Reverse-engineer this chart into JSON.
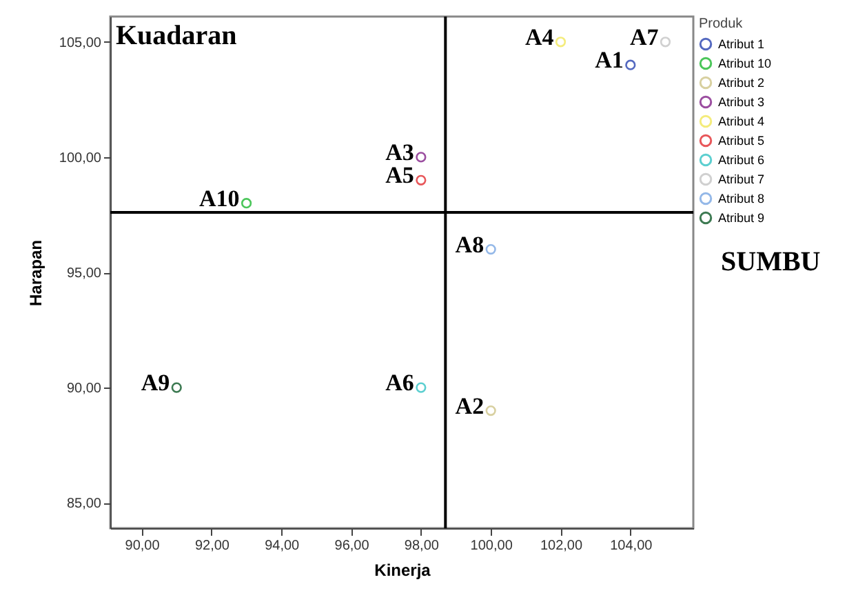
{
  "chart_data": {
    "type": "scatter",
    "xlabel": "Kinerja",
    "ylabel": "Harapan",
    "legend_title": "Produk",
    "legend": "top right",
    "marker": "circle",
    "grid": false,
    "xlim": [
      89.1,
      105.8
    ],
    "ylim": [
      83.9,
      106.1
    ],
    "xticks": [
      {
        "value": 90,
        "label": "90,00"
      },
      {
        "value": 92,
        "label": "92,00"
      },
      {
        "value": 94,
        "label": "94,00"
      },
      {
        "value": 96,
        "label": "96,00"
      },
      {
        "value": 98,
        "label": "98,00"
      },
      {
        "value": 100,
        "label": "100,00"
      },
      {
        "value": 102,
        "label": "102,00"
      },
      {
        "value": 104,
        "label": "104,00"
      }
    ],
    "yticks": [
      {
        "value": 85,
        "label": "85,00"
      },
      {
        "value": 90,
        "label": "90,00"
      },
      {
        "value": 95,
        "label": "95,00"
      },
      {
        "value": 100,
        "label": "100,00"
      },
      {
        "value": 105,
        "label": "105,00"
      }
    ],
    "series": [
      {
        "name": "Atribut 1",
        "color": "#5469c0",
        "x": [
          104
        ],
        "values": [
          104
        ]
      },
      {
        "name": "Atribut 10",
        "color": "#4bc65a",
        "x": [
          93
        ],
        "values": [
          98
        ]
      },
      {
        "name": "Atribut 2",
        "color": "#d8d0a0",
        "x": [
          100
        ],
        "values": [
          89
        ]
      },
      {
        "name": "Atribut 3",
        "color": "#9b4ea0",
        "x": [
          98
        ],
        "values": [
          100
        ]
      },
      {
        "name": "Atribut 4",
        "color": "#f4ec7c",
        "x": [
          102
        ],
        "values": [
          105
        ]
      },
      {
        "name": "Atribut 5",
        "color": "#e8575a",
        "x": [
          98
        ],
        "values": [
          99
        ]
      },
      {
        "name": "Atribut 6",
        "color": "#5ccfd0",
        "x": [
          98
        ],
        "values": [
          90
        ]
      },
      {
        "name": "Atribut 7",
        "color": "#d0d0d0",
        "x": [
          105
        ],
        "values": [
          105
        ]
      },
      {
        "name": "Atribut 8",
        "color": "#94b8e8",
        "x": [
          100
        ],
        "values": [
          96
        ]
      },
      {
        "name": "Atribut 9",
        "color": "#3d7a52",
        "x": [
          91
        ],
        "values": [
          90
        ]
      }
    ],
    "ref_lines": [
      {
        "axis": "x",
        "value": 98.7,
        "color": "#000000"
      },
      {
        "axis": "y",
        "value": 97.6,
        "color": "#000000"
      }
    ],
    "annotations": [
      "Kuadaran",
      "SUMBU",
      {
        "text": "A1",
        "x": 104,
        "y": 104
      },
      {
        "text": "A10",
        "x": 93,
        "y": 98
      },
      {
        "text": "A2",
        "x": 100,
        "y": 89
      },
      {
        "text": "A3",
        "x": 98,
        "y": 100
      },
      {
        "text": "A4",
        "x": 102,
        "y": 105
      },
      {
        "text": "A5",
        "x": 98,
        "y": 99
      },
      {
        "text": "A6",
        "x": 98,
        "y": 90
      },
      {
        "text": "A7",
        "x": 105,
        "y": 105
      },
      {
        "text": "A8",
        "x": 100,
        "y": 96
      },
      {
        "text": "A9",
        "x": 91,
        "y": 90
      }
    ]
  }
}
